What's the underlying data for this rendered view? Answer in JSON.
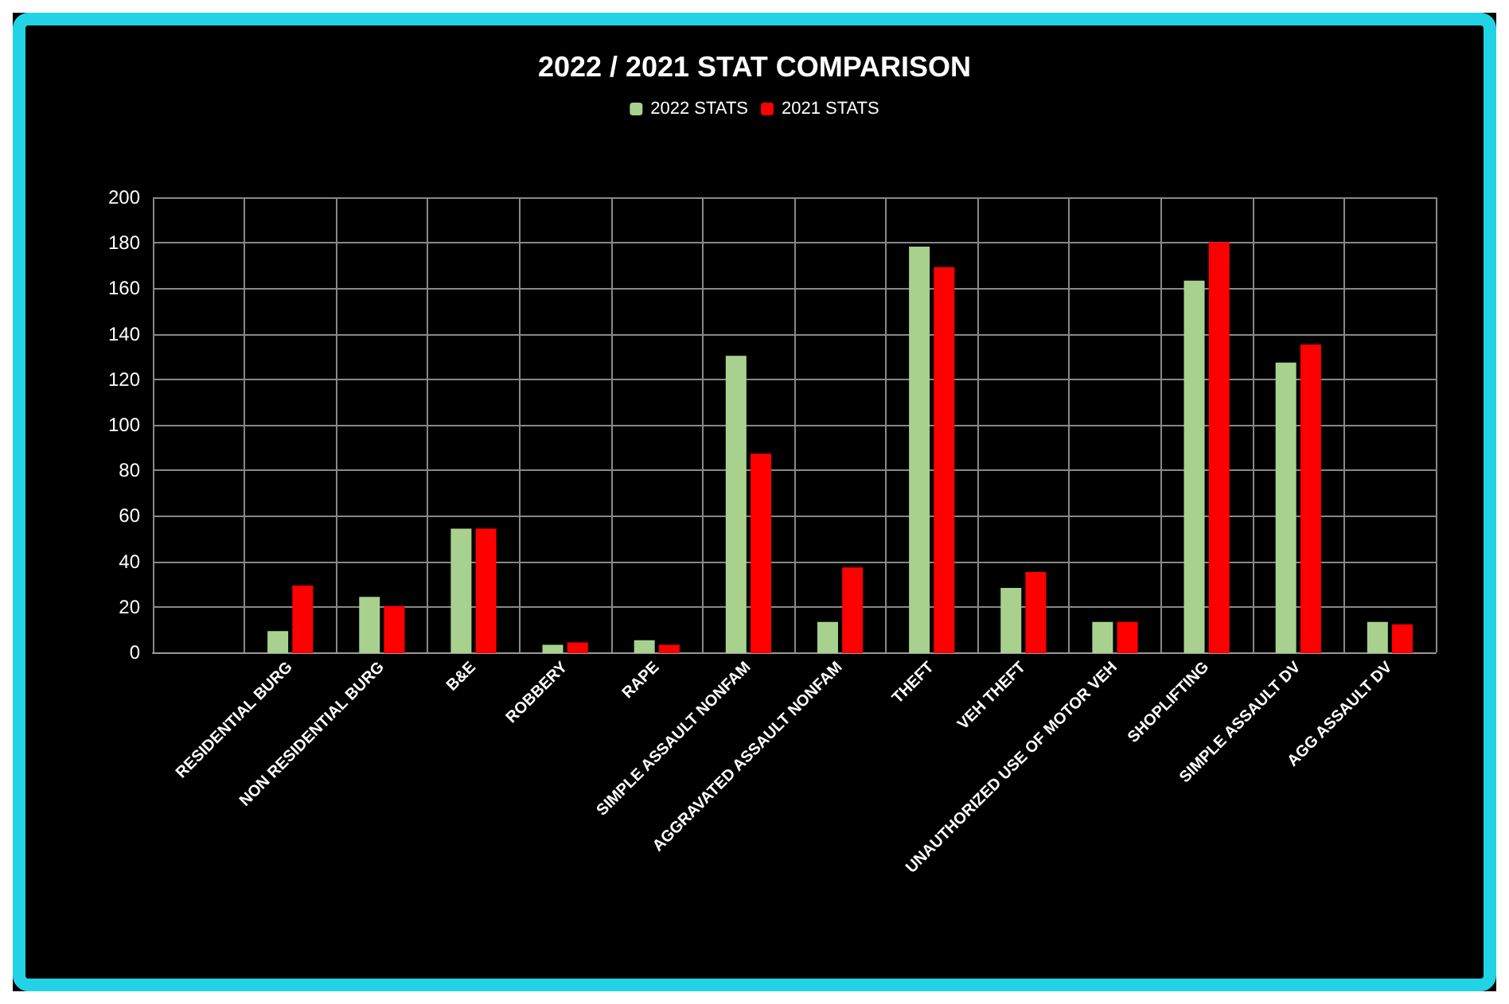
{
  "chart_data": {
    "type": "bar",
    "title": "2022 / 2021 STAT COMPARISON",
    "categories": [
      null,
      "RESIDENTIAL BURG",
      "NON RESIDENTIAL BURG",
      "B&E",
      "ROBBERY",
      "RAPE",
      "SIMPLE ASSAULT NONFAM",
      "AGGRAVATED ASSAULT NONFAM",
      "THEFT",
      "VEH THEFT",
      "UNAUTHORIZED USE OF MOTOR VEH",
      "SHOPLIFTING",
      "SIMPLE ASSAULT DV",
      "AGG ASSAULT DV"
    ],
    "series": [
      {
        "name": "2022 STATS",
        "color": "#a9d18e",
        "values": [
          null,
          9,
          24,
          54,
          3,
          5,
          130,
          13,
          178,
          28,
          13,
          163,
          127,
          13
        ]
      },
      {
        "name": "2021 STATS",
        "color": "#ff0000",
        "values": [
          null,
          29,
          20,
          54,
          4,
          3,
          87,
          37,
          169,
          35,
          13,
          180,
          135,
          12
        ]
      }
    ],
    "ylim": [
      0,
      200
    ],
    "yticks": [
      0,
      20,
      40,
      60,
      80,
      100,
      120,
      140,
      160,
      180,
      200
    ],
    "grid": true,
    "legend": "top"
  }
}
